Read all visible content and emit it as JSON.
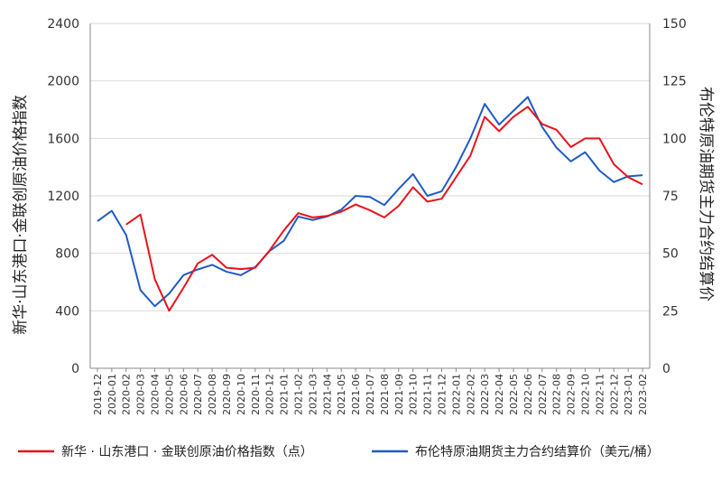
{
  "chart_data": {
    "type": "line",
    "title": "",
    "ylabel_left": "新华·山东港口·金联创原油价格指数",
    "ylabel_right": "布伦特原油期货主力合约结算价",
    "ylim_left": [
      0,
      2400
    ],
    "ylim_right": [
      0,
      150
    ],
    "left_ticks": [
      "0",
      "400",
      "800",
      "1200",
      "1600",
      "2000",
      "2400"
    ],
    "right_ticks": [
      "0",
      "25",
      "50",
      "75",
      "100",
      "125",
      "150"
    ],
    "x_labels": [
      "2019-12",
      "2020-01",
      "2020-02",
      "2020-03",
      "2020-04",
      "2020-05",
      "2020-06",
      "2020-07",
      "2020-08",
      "2020-09",
      "2020-10",
      "2020-11",
      "2020-12",
      "2021-01",
      "2021-02",
      "2021-03",
      "2021-04",
      "2021-05",
      "2021-06",
      "2021-07",
      "2021-08",
      "2021-09",
      "2021-10",
      "2021-11",
      "2021-12",
      "2022-01",
      "2022-02",
      "2022-03",
      "2022-04",
      "2022-05",
      "2022-06",
      "2022-07",
      "2022-08",
      "2022-09",
      "2022-10",
      "2022-11",
      "2022-12",
      "2023-01",
      "2023-02"
    ],
    "grid": "horizontal",
    "legend_position": "bottom",
    "series": [
      {
        "name": "新华 · 山东港口 · 金联创原油价格指数（点）",
        "axis": "left",
        "color": "#e8131b",
        "values": [
          null,
          null,
          1000,
          1070,
          620,
          400,
          560,
          730,
          790,
          700,
          690,
          700,
          820,
          960,
          1080,
          1050,
          1060,
          1090,
          1140,
          1100,
          1050,
          1130,
          1260,
          1160,
          1180,
          1330,
          1480,
          1750,
          1650,
          1750,
          1820,
          1700,
          1660,
          1540,
          1600,
          1600,
          1420,
          1330,
          1280
        ]
      },
      {
        "name": "布伦特原油期货主力合约结算价（美元/桶）",
        "axis": "right",
        "color": "#1f5bc4",
        "values": [
          64.0,
          68.5,
          58.0,
          34.0,
          27.0,
          32.5,
          40.5,
          43.0,
          45.0,
          42.0,
          40.5,
          44.0,
          51.0,
          55.5,
          66.0,
          64.5,
          66.0,
          69.0,
          75.0,
          74.5,
          71.0,
          78.0,
          84.5,
          75.0,
          77.0,
          87.5,
          100.0,
          115.0,
          106.0,
          112.0,
          118.0,
          105.0,
          96.0,
          90.0,
          94.0,
          86.0,
          81.0,
          83.5,
          84.0
        ]
      }
    ]
  },
  "colors": {
    "red": "#e8131b",
    "blue": "#1f5bc4",
    "grid": "#d9d9d9",
    "axis": "#888888"
  }
}
